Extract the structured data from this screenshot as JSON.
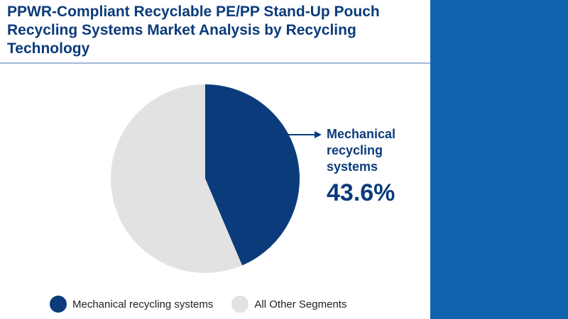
{
  "title": "PPWR-Compliant Recyclable PE/PP Stand-Up Pouch Recycling Systems Market Analysis by Recycling Technology",
  "colors": {
    "primary": "#0b3b7a",
    "secondary": "#e2e2e2",
    "panel": "#0f64ad"
  },
  "chart_data": {
    "type": "pie",
    "title": "PPWR-Compliant Recyclable PE/PP Stand-Up Pouch Recycling Systems Market Analysis by Recycling Technology",
    "slices": [
      {
        "label": "Mechanical recycling systems",
        "value": 43.6,
        "color": "#0b3b7a"
      },
      {
        "label": "All Other Segments",
        "value": 56.4,
        "color": "#e2e2e2"
      }
    ],
    "legend_position": "bottom"
  },
  "callout": {
    "label": "Mechanical recycling systems",
    "value": "43.6%"
  },
  "legend": [
    {
      "label": "Mechanical recycling systems",
      "color": "#0b3b7a"
    },
    {
      "label": "All Other Segments",
      "color": "#e2e2e2"
    }
  ]
}
